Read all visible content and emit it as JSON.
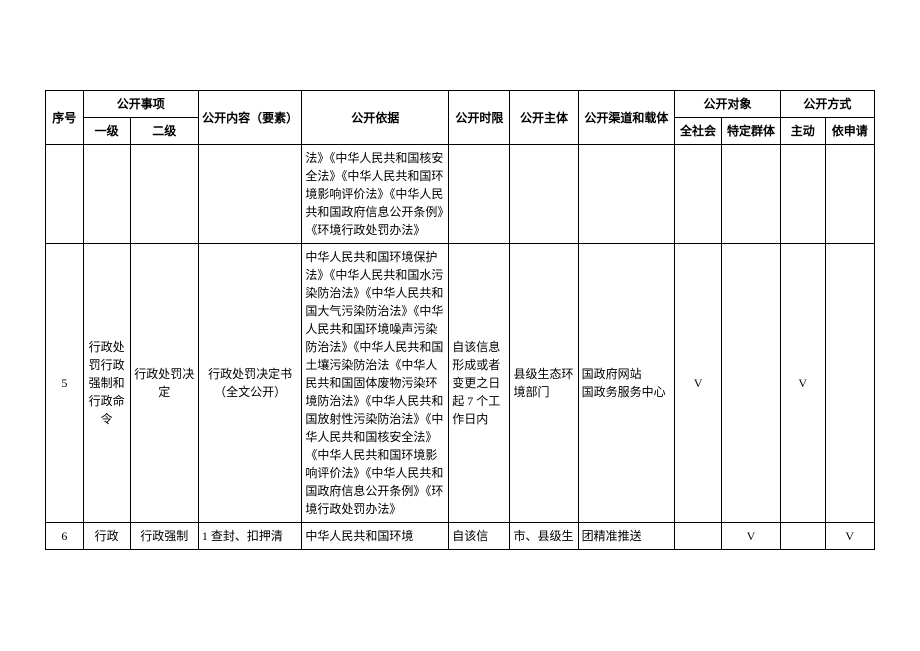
{
  "table": {
    "headers": {
      "seq": "序号",
      "item": "公开事项",
      "level1": "一级",
      "level2": "二级",
      "content": "公开内容（要素）",
      "basis": "公开依据",
      "time": "公开时限",
      "subject": "公开主体",
      "channel": "公开渠道和载体",
      "target": "公开对象",
      "allSociety": "全社会",
      "specificGroup": "特定群体",
      "method": "公开方式",
      "active": "主动",
      "apply": "依申请"
    },
    "rows": [
      {
        "seq": "",
        "level1": "",
        "level2": "",
        "content": "",
        "basis": "法》《中华人民共和国核安全法》《中华人民共和国环境影响评价法》《中华人民共和国政府信息公开条例》《环境行政处罚办法》",
        "time": "",
        "subject": "",
        "channel": "",
        "allSociety": "",
        "specificGroup": "",
        "active": "",
        "apply": ""
      },
      {
        "seq": "5",
        "level1": "行政处罚行政强制和行政命令",
        "level2": "行政处罚决定",
        "content": "行政处罚决定书（全文公开）",
        "basis": "中华人民共和国环境保护法》《中华人民共和国水污染防治法》《中华人民共和国大气污染防治法》《中华人民共和国环境噪声污染防治法》《中华人民共和国土壤污染防治法《中华人民共和国固体废物污染环境防治法》《中华人民共和国放射性污染防治法》《中华人民共和国核安全法》《中华人民共和国环境影响评价法》《中华人民共和国政府信息公开条例》《环境行政处罚办法》",
        "time": "自该信息形成或者变更之日起 7 个工作日内",
        "subject": "县级生态环境部门",
        "channel": "国政府网站\n国政务服务中心",
        "allSociety": "V",
        "specificGroup": "",
        "active": "V",
        "apply": ""
      },
      {
        "seq": "6",
        "level1": "行政",
        "level2": "行政强制",
        "content": "1 查封、扣押清",
        "basis": "中华人民共和国环境",
        "time": "自该信",
        "subject": "市、县级生",
        "channel": "团精准推送",
        "allSociety": "",
        "specificGroup": "V",
        "active": "",
        "apply": "V"
      }
    ]
  }
}
